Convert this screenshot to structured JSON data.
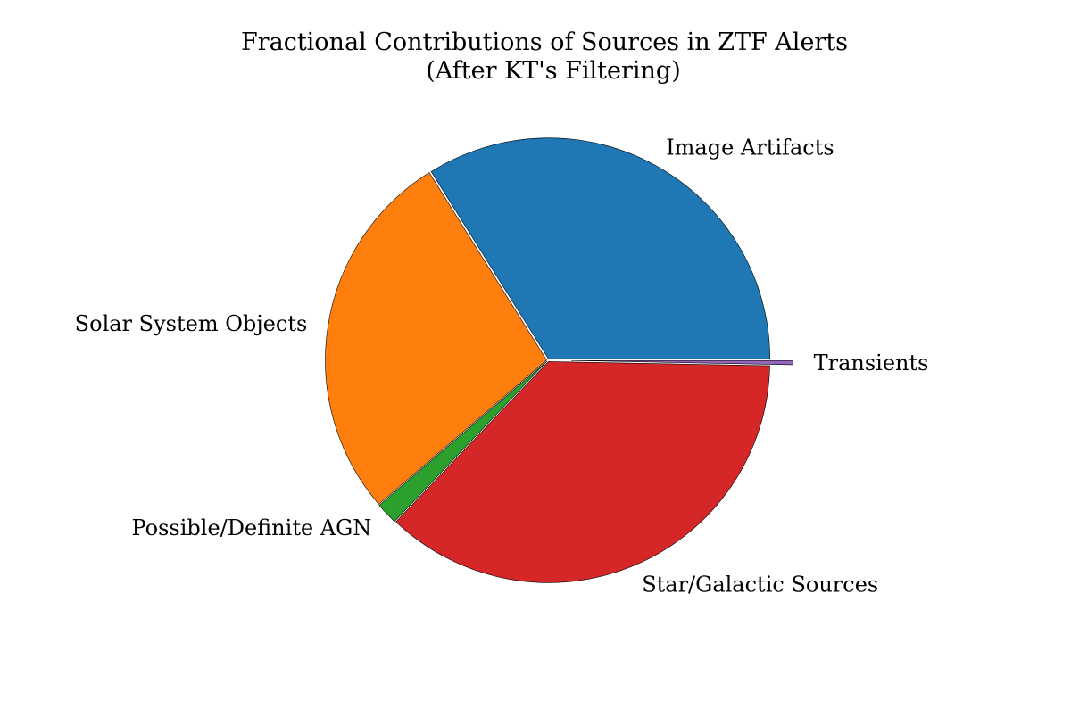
{
  "chart_data": {
    "type": "pie",
    "title_lines": [
      "Fractional Contributions of Sources in ZTF Alerts",
      "(After KT's Filtering)"
    ],
    "slices": [
      {
        "label": "Image Artifacts",
        "value": 33.9,
        "color": "#1f77b4"
      },
      {
        "label": "Solar System Objects",
        "value": 27.4,
        "color": "#ff7f0e"
      },
      {
        "label": "Possible/Definite AGN",
        "value": 1.6,
        "color": "#2ca02c"
      },
      {
        "label": "Star/Galactic Sources",
        "value": 36.8,
        "color": "#d62728"
      },
      {
        "label": "Transients",
        "value": 0.3,
        "color": "#9467bd"
      }
    ],
    "exploded": [
      "Transients"
    ],
    "edge_color": "#000000"
  }
}
